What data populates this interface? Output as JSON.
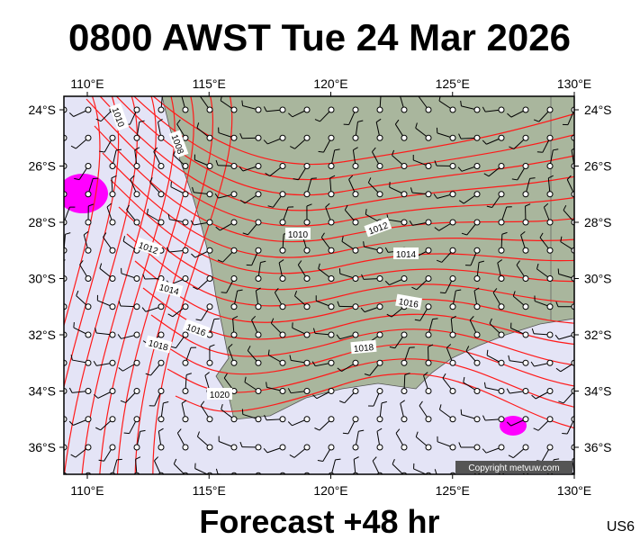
{
  "title": "0800 AWST Tue 24 Mar 2026",
  "footer": "Forecast +48 hr",
  "code": "US6",
  "copyright": "Copyright metvuw.com",
  "map": {
    "lon_labels": [
      "110°E",
      "115°E",
      "120°E",
      "125°E",
      "130°E"
    ],
    "lat_labels": [
      "24°S",
      "26°S",
      "28°S",
      "30°S",
      "32°S",
      "34°S",
      "36°S"
    ],
    "isobar_labels": [
      "1010",
      "1008",
      "1010",
      "1012",
      "1012",
      "1014",
      "1014",
      "1016",
      "1016",
      "1018",
      "1018",
      "1020"
    ]
  }
}
